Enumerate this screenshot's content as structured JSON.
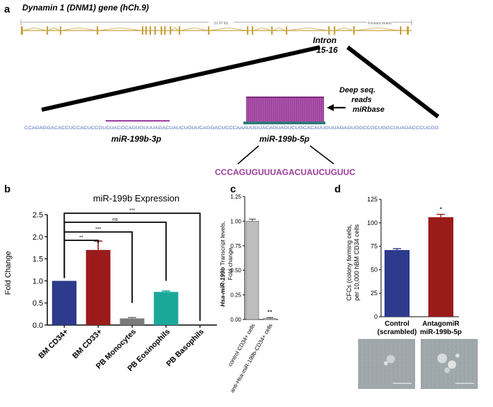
{
  "panel_a": {
    "letter": "a",
    "gene_title": "Dynamin 1 (DNM1) gene (hCh.9)",
    "scale_label": "51.97 Kb",
    "strand_label": "Forward strand",
    "intron_label_line1": "Intron",
    "intron_label_line2": "15-16",
    "deep_seq_line1": "Deep seq.",
    "deep_seq_line2": "reads",
    "deep_seq_line3": "miRbase",
    "genomic_sequence": "CCAGAGGACACCUCCACUCCGUCUACCCAGUGUUUAGACUAUCUGUUCAGGACUCCCAAAUUGUACAGUAGUCUGCACAUUGUUAGAGUGGCCGCUGGCUUAGACCCUCGG",
    "mir3p_label": "miR-199b-3p",
    "mir5p_label": "miR-199b-5p",
    "mature_sequence": "CCCAGUGUUUAGACUAUCUGUUC",
    "colors": {
      "gene": "#c8a23c",
      "mirna": "#9b3c9b",
      "sequence": "#4a66b8"
    }
  },
  "panel_b": {
    "letter": "b",
    "chart_data": {
      "type": "bar",
      "title": "miR-199b Expression",
      "ylabel": "Fold Change",
      "ylim": [
        0,
        2.5
      ],
      "yticks": [
        "0.0",
        "0.5",
        "1.0",
        "1.5",
        "2.0",
        "2.5"
      ],
      "categories": [
        "BM CD34+",
        "BM CD33+",
        "PB Monocytes",
        "PB Eosinophils",
        "PB Basophils"
      ],
      "values": [
        1.0,
        1.7,
        0.15,
        0.75,
        0.0
      ],
      "errors": [
        0.0,
        0.2,
        0.02,
        0.02,
        0.0
      ],
      "colors": [
        "#2e3a8c",
        "#9b1b1b",
        "#7a7a7a",
        "#1aa89a",
        "#444444"
      ],
      "significance": [
        "**",
        "***",
        "ns",
        "***"
      ]
    }
  },
  "panel_c": {
    "letter": "c",
    "chart_data": {
      "type": "bar",
      "ylabel_line1": "Hsa-miR-199b",
      "ylabel_line2": " Transcript levels,",
      "ylabel_line3": "Fold change",
      "ylim": [
        0,
        1.25
      ],
      "yticks": [
        "0.00",
        "0.25",
        "0.50",
        "0.75",
        "1.00",
        "1.25"
      ],
      "categories": [
        "control CD34+ cells",
        "anti-Hsa-miR-199b-CD34+ cells"
      ],
      "values": [
        1.0,
        0.01
      ],
      "errors": [
        0.02,
        0.01
      ],
      "colors": [
        "#bdbdbd",
        "#bdbdbd"
      ],
      "significance": "**"
    }
  },
  "panel_d": {
    "letter": "d",
    "chart_data": {
      "type": "bar",
      "ylabel_line1": "CFCs (colony forming cells,",
      "ylabel_line2": "per 10,000 hBM CD34 cells",
      "ylim": [
        0,
        125
      ],
      "yticks": [
        "0",
        "25",
        "50",
        "75",
        "100",
        "125"
      ],
      "categories_line1": [
        "Control",
        "AntagomiR"
      ],
      "categories_line2": [
        "(scrambled)",
        "miR-199b-5p"
      ],
      "values": [
        71,
        106
      ],
      "errors": [
        1.5,
        3
      ],
      "colors": [
        "#2e3a8c",
        "#9b1b1b"
      ],
      "significance": "*"
    }
  }
}
